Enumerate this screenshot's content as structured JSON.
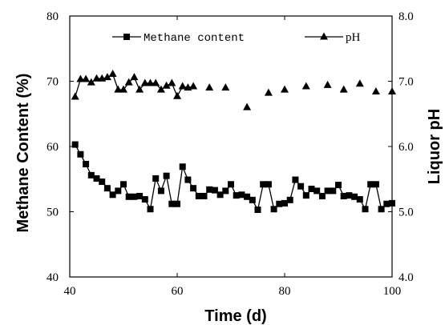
{
  "chart_data": {
    "type": "line",
    "xlabel": "Time (d)",
    "ylabel_left": "Methane Content (%)",
    "ylabel_right": "Liquor pH",
    "xlim": [
      40,
      100
    ],
    "ylim_left": [
      40,
      80
    ],
    "ylim_right": [
      4.0,
      8.0
    ],
    "x_ticks": [
      "40",
      "60",
      "80",
      "100"
    ],
    "y_left_ticks": [
      "40",
      "50",
      "60",
      "70",
      "80"
    ],
    "y_right_ticks": [
      "4.0",
      "5.0",
      "6.0",
      "7.0",
      "8.0"
    ],
    "grid": false,
    "legend_position": "top",
    "series": [
      {
        "name": "Methane content",
        "axis": "left",
        "marker": "square",
        "line": true,
        "color": "#000000",
        "x": [
          41,
          42,
          43,
          44,
          45,
          46,
          47,
          48,
          49,
          50,
          51,
          52,
          53,
          54,
          55,
          56,
          57,
          58,
          59,
          60,
          61,
          62,
          63,
          64,
          65,
          66,
          67,
          68,
          69,
          70,
          71,
          72,
          73,
          74,
          75,
          76,
          77,
          78,
          79,
          80,
          81,
          82,
          83,
          84,
          85,
          86,
          87,
          88,
          89,
          90,
          91,
          92,
          93,
          94,
          95,
          96,
          97,
          98,
          99,
          100
        ],
        "y": [
          60.3,
          58.8,
          57.3,
          55.6,
          55.1,
          54.6,
          53.6,
          52.6,
          53.2,
          54.2,
          52.3,
          52.3,
          52.4,
          51.9,
          50.4,
          55.1,
          53.2,
          55.5,
          51.2,
          51.2,
          56.9,
          54.9,
          53.6,
          52.4,
          52.4,
          53.4,
          53.3,
          52.6,
          53.2,
          54.2,
          52.5,
          52.6,
          52.3,
          51.8,
          50.3,
          54.2,
          54.2,
          50.4,
          51.2,
          51.3,
          51.8,
          54.9,
          53.9,
          52.5,
          53.5,
          53.2,
          52.4,
          53.2,
          53.2,
          54.1,
          52.4,
          52.5,
          52.3,
          51.9,
          50.4,
          54.2,
          54.2,
          50.4,
          51.2,
          51.3
        ]
      },
      {
        "name": "pH",
        "axis": "right",
        "marker": "triangle",
        "line_segment_x_max": 63,
        "color": "#000000",
        "x": [
          41,
          42,
          43,
          44,
          45,
          46,
          47,
          48,
          49,
          50,
          51,
          52,
          53,
          54,
          55,
          56,
          57,
          58,
          59,
          60,
          61,
          62,
          63,
          66,
          69,
          73,
          77,
          80,
          84,
          88,
          91,
          94,
          97,
          100
        ],
        "y": [
          6.76,
          7.03,
          7.03,
          6.98,
          7.04,
          7.04,
          7.06,
          7.11,
          6.87,
          6.87,
          6.98,
          7.06,
          6.87,
          6.97,
          6.97,
          6.97,
          6.87,
          6.93,
          6.97,
          6.77,
          6.92,
          6.9,
          6.92,
          6.9,
          6.9,
          6.6,
          6.82,
          6.87,
          6.92,
          6.94,
          6.87,
          6.96,
          6.84,
          6.84
        ]
      }
    ]
  }
}
